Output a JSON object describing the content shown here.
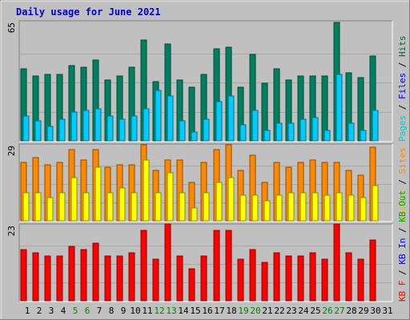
{
  "chart_data": {
    "type": "bar",
    "title": "Daily usage for June 2021",
    "days": [
      "1",
      "2",
      "3",
      "4",
      "5",
      "6",
      "7",
      "8",
      "9",
      "10",
      "11",
      "12",
      "13",
      "14",
      "15",
      "16",
      "17",
      "18",
      "19",
      "20",
      "21",
      "22",
      "23",
      "24",
      "25",
      "26",
      "27",
      "28",
      "29",
      "30",
      "31"
    ],
    "weekend_days": [
      5,
      6,
      12,
      13,
      19,
      20,
      26,
      27
    ],
    "colors": {
      "title": "#0000cc",
      "hits": "#006633",
      "files": "#0000ff",
      "pages": "#00cccc",
      "visits": "#cccc00",
      "sites": "#ff8800",
      "kb_in": "#00aa00",
      "kb_out": "#0000ff",
      "kb_f": "#ff0000",
      "weekday_label": "#000000",
      "weekend_label": "#008000"
    },
    "panels": [
      {
        "name": "pages-files-hits",
        "ymax_label": "65",
        "ymax": 65,
        "legend": [
          {
            "text": "Pages",
            "color_key": "pages"
          },
          {
            "text": " / ",
            "color_key": "weekday_label"
          },
          {
            "text": "Files",
            "color_key": "files"
          },
          {
            "text": " / ",
            "color_key": "weekday_label"
          },
          {
            "text": "Hits",
            "color_key": "hits"
          }
        ],
        "series": [
          {
            "key": "hits",
            "color": "#008060",
            "values": [
              40,
              36,
              37,
              37,
              42,
              41,
              45,
              34,
              36,
              41,
              56,
              33,
              54,
              34,
              30,
              37,
              51,
              52,
              30,
              48,
              32,
              40,
              34,
              36,
              36,
              36,
              66,
              38,
              35,
              47,
              null
            ]
          },
          {
            "key": "pages",
            "color": "#00ccff",
            "values": [
              14,
              11,
              8,
              12,
              16,
              17,
              18,
              14,
              12,
              14,
              18,
              28,
              25,
              11,
              5,
              12,
              22,
              25,
              9,
              17,
              6,
              10,
              10,
              12,
              13,
              6,
              37,
              10,
              6,
              17,
              null
            ]
          }
        ]
      },
      {
        "name": "visits-sites",
        "ymax_label": "29",
        "ymax": 29,
        "legend": [
          {
            "text": "Visits",
            "color_key": "visits"
          },
          {
            "text": " / ",
            "color_key": "weekday_label"
          },
          {
            "text": "Sites",
            "color_key": "sites"
          }
        ],
        "series": [
          {
            "key": "sites",
            "color": "#ff8800",
            "values": [
              23,
              25,
              22,
              23,
              28,
              24,
              28,
              21,
              22,
              22,
              30,
              20,
              24,
              24,
              15,
              23,
              28,
              30,
              20,
              26,
              15,
              23,
              21,
              23,
              24,
              23,
              23,
              20,
              18,
              29,
              null
            ]
          },
          {
            "key": "visits",
            "color": "#ffff00",
            "values": [
              11,
              11,
              9,
              11,
              17,
              11,
              21,
              11,
              13,
              11,
              24,
              11,
              19,
              11,
              5,
              11,
              15,
              17,
              10,
              10,
              8,
              10,
              11,
              11,
              11,
              10,
              11,
              10,
              9,
              14,
              null
            ]
          }
        ]
      },
      {
        "name": "kb",
        "ymax_label": "23",
        "ymax": 23,
        "legend": [
          {
            "text": "KB F",
            "color_key": "kb_f"
          },
          {
            "text": " / ",
            "color_key": "weekday_label"
          },
          {
            "text": "KB In",
            "color_key": "kb_out"
          },
          {
            "text": " / ",
            "color_key": "weekday_label"
          },
          {
            "text": "KB Out",
            "color_key": "kb_in"
          }
        ],
        "series": [
          {
            "key": "kb_f",
            "color": "#ff0000",
            "values": [
              16,
              15,
              14,
              14,
              17,
              16,
              18,
              14,
              14,
              15,
              22,
              13,
              24,
              14,
              10,
              14,
              22,
              22,
              13,
              16,
              12,
              15,
              14,
              14,
              15,
              13,
              24,
              15,
              13,
              19,
              null
            ]
          }
        ]
      }
    ]
  }
}
